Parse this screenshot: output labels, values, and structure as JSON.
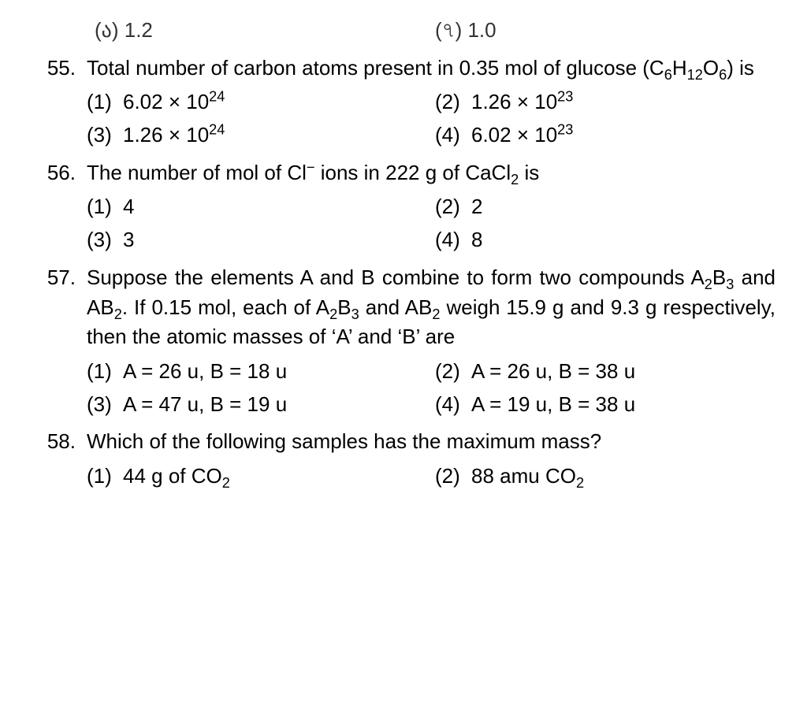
{
  "partial": {
    "left": "(ა) 1.2",
    "right": "(৭) 1.0"
  },
  "questions": [
    {
      "num": "55.",
      "stem": "Total number of carbon atoms present in 0.35 mol of glucose (C<sub>6</sub>H<sub>12</sub>O<sub>6</sub>) is",
      "options": [
        {
          "label": "(1)",
          "text": "6.02 × 10<sup>24</sup>"
        },
        {
          "label": "(2)",
          "text": "1.26 × 10<sup>23</sup>"
        },
        {
          "label": "(3)",
          "text": "1.26 × 10<sup>24</sup>"
        },
        {
          "label": "(4)",
          "text": "6.02 × 10<sup>23</sup>"
        }
      ]
    },
    {
      "num": "56.",
      "stem": "The number of mol of Cl<sup>−</sup> ions in 222 g of CaCl<sub>2</sub> is",
      "options": [
        {
          "label": "(1)",
          "text": "4"
        },
        {
          "label": "(2)",
          "text": "2"
        },
        {
          "label": "(3)",
          "text": "3"
        },
        {
          "label": "(4)",
          "text": "8"
        }
      ]
    },
    {
      "num": "57.",
      "stem": "Suppose the elements A and B combine to form two compounds A<sub>2</sub>B<sub>3</sub> and AB<sub>2</sub>. If 0.15 mol, each of A<sub>2</sub>B<sub>3</sub> and AB<sub>2</sub> weigh 15.9 g and 9.3 g respectively, then the atomic masses of ‘A’ and ‘B’ are",
      "options": [
        {
          "label": "(1)",
          "text": "A = 26 u, B = 18 u"
        },
        {
          "label": "(2)",
          "text": "A = 26 u, B = 38 u"
        },
        {
          "label": "(3)",
          "text": "A = 47 u, B = 19 u"
        },
        {
          "label": "(4)",
          "text": "A = 19 u, B = 38 u"
        }
      ]
    },
    {
      "num": "58.",
      "stem": "Which of the following samples has the maximum mass?",
      "options": [
        {
          "label": "(1)",
          "text": "44 g of CO<sub>2</sub>"
        },
        {
          "label": "(2)",
          "text": "88 amu CO<sub>2</sub>"
        }
      ]
    }
  ]
}
